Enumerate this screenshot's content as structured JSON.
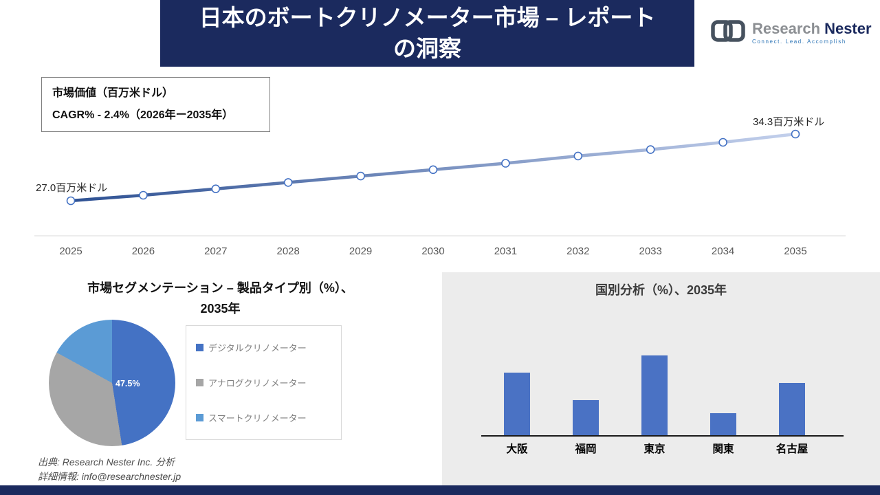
{
  "header": {
    "title": "日本のボートクリノメーター市場 – レポートの洞察",
    "title_lines": [
      "日本のボートクリノメーター市場 – レポート",
      "の洞察"
    ],
    "logo": {
      "part1": "Research",
      "part2": "Nester",
      "tagline": "Connect. Lead. Accomplish"
    }
  },
  "footer": {
    "source": "出典: Research Nester Inc. 分析",
    "contact": "詳細情報: info@researchnester.jp"
  },
  "colors": {
    "navy": "#1b2a5e",
    "line_gradient_start": "#2e5193",
    "line_gradient_end": "#c3d0ec",
    "marker_stroke": "#4472c4",
    "panel_gray": "#ececec"
  },
  "chart_data": [
    {
      "type": "line",
      "title": "市場価値（百万米ドル）",
      "cagr": "CAGR% - 2.4%（2026年ー2035年）",
      "x": [
        "2025",
        "2026",
        "2027",
        "2028",
        "2029",
        "2030",
        "2031",
        "2032",
        "2033",
        "2034",
        "2035"
      ],
      "values": [
        27.0,
        27.6,
        28.3,
        29.0,
        29.7,
        30.4,
        31.1,
        31.9,
        32.6,
        33.4,
        34.3
      ],
      "ylim": [
        26,
        36
      ],
      "annotations": {
        "start": "27.0百万米ドル",
        "end": "34.3百万米ドル"
      },
      "grid": false,
      "legend_position": "top-left"
    },
    {
      "type": "pie",
      "title": "市場セグメンテーション – 製品タイプ別（%）、2035年",
      "title_lines": [
        "市場セグメンテーション – 製品タイプ別（%）、",
        "2035年"
      ],
      "labels": [
        "デジタルクリノメーター",
        "アナログクリノメーター",
        "スマートクリノメーター"
      ],
      "values": [
        47.5,
        35.5,
        17.0
      ],
      "colors": [
        "#4472c4",
        "#a6a6a6",
        "#5b9bd5"
      ],
      "data_label": "47.5%",
      "legend_position": "right"
    },
    {
      "type": "bar",
      "title": "国別分析（%）、2035年",
      "categories": [
        "大阪",
        "福岡",
        "東京",
        "関東",
        "名古屋"
      ],
      "values": [
        30,
        17,
        38,
        11,
        25
      ],
      "bar_color": "#4a72c4",
      "ylim": [
        0,
        40
      ]
    }
  ]
}
